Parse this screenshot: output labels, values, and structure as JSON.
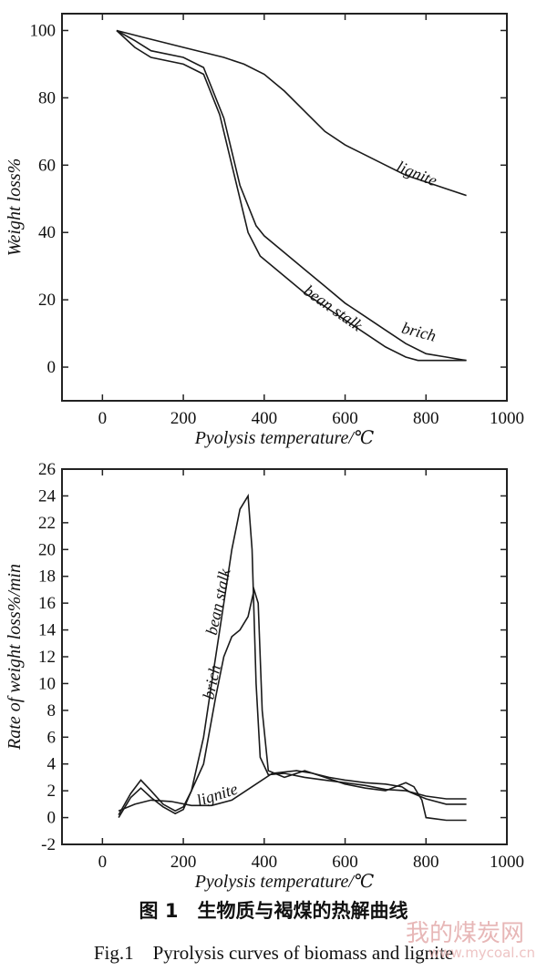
{
  "chart_data": [
    {
      "type": "line",
      "title": "",
      "xlabel": "Pyolysis temperature/℃",
      "ylabel": "Weight loss%",
      "xlim": [
        -100,
        1000
      ],
      "ylim": [
        -10,
        105
      ],
      "xticks": [
        0,
        200,
        400,
        600,
        800,
        1000
      ],
      "yticks": [
        0,
        20,
        40,
        60,
        80,
        100
      ],
      "grid": false,
      "series": [
        {
          "name": "lignite",
          "x": [
            35,
            100,
            200,
            300,
            350,
            400,
            450,
            500,
            550,
            600,
            650,
            700,
            750,
            800,
            850,
            900
          ],
          "y": [
            100,
            98,
            95,
            92,
            90,
            87,
            82,
            76,
            70,
            66,
            63,
            60,
            57,
            55,
            53,
            51
          ]
        },
        {
          "name": "brich",
          "x": [
            35,
            80,
            120,
            200,
            250,
            300,
            340,
            380,
            400,
            450,
            500,
            550,
            600,
            650,
            700,
            750,
            800,
            850,
            900
          ],
          "y": [
            100,
            97,
            94,
            92,
            89,
            74,
            54,
            42,
            39,
            34,
            29,
            24,
            19,
            15,
            11,
            7,
            4,
            3,
            2
          ]
        },
        {
          "name": "bean stalk",
          "x": [
            35,
            80,
            120,
            200,
            250,
            290,
            330,
            360,
            390,
            450,
            500,
            550,
            600,
            650,
            700,
            750,
            780,
            900
          ],
          "y": [
            100,
            95,
            92,
            90,
            87,
            75,
            55,
            40,
            33,
            27,
            22,
            18,
            14,
            10,
            6,
            3,
            2,
            2
          ]
        }
      ],
      "annotations": [
        "lignite",
        "bean stalk",
        "brich"
      ]
    },
    {
      "type": "line",
      "title": "",
      "xlabel": "Pyolysis temperature/℃",
      "ylabel": "Rate of weight loss%/min",
      "xlim": [
        -100,
        1000
      ],
      "ylim": [
        -2,
        26
      ],
      "xticks": [
        0,
        200,
        400,
        600,
        800,
        1000
      ],
      "yticks": [
        -2,
        0,
        2,
        4,
        6,
        8,
        10,
        12,
        14,
        16,
        18,
        20,
        22,
        24,
        26
      ],
      "grid": false,
      "series": [
        {
          "name": "bean stalk",
          "x": [
            40,
            70,
            95,
            120,
            150,
            180,
            200,
            220,
            250,
            270,
            300,
            320,
            340,
            360,
            370,
            380,
            390,
            410,
            450,
            500,
            550,
            600,
            650,
            700,
            750,
            800,
            850,
            900
          ],
          "y": [
            0,
            1.5,
            2.2,
            1.5,
            0.8,
            0.3,
            0.6,
            2.0,
            6.0,
            10.0,
            16.0,
            20.0,
            23.0,
            24.0,
            20.0,
            10.0,
            4.5,
            3.2,
            3.3,
            3.0,
            2.8,
            2.6,
            2.4,
            2.1,
            2.0,
            1.6,
            1.4,
            1.4
          ]
        },
        {
          "name": "brich",
          "x": [
            40,
            70,
            95,
            120,
            150,
            180,
            200,
            220,
            250,
            280,
            300,
            320,
            340,
            360,
            375,
            385,
            395,
            410,
            450,
            500,
            550,
            600,
            650,
            700,
            750,
            770,
            790,
            800,
            850,
            900
          ],
          "y": [
            0.2,
            1.8,
            2.8,
            2.0,
            1.0,
            0.5,
            0.8,
            2.0,
            4.0,
            9.0,
            12.0,
            13.5,
            14.0,
            15.0,
            17.0,
            16.0,
            8.0,
            3.5,
            3.0,
            3.5,
            3.0,
            2.5,
            2.2,
            2.0,
            2.6,
            2.3,
            1.3,
            0.0,
            -0.2,
            -0.2
          ]
        },
        {
          "name": "lignite",
          "x": [
            40,
            80,
            120,
            170,
            220,
            270,
            320,
            370,
            420,
            480,
            520,
            560,
            600,
            650,
            700,
            740,
            760,
            800,
            850,
            900
          ],
          "y": [
            0.5,
            1.0,
            1.3,
            1.2,
            0.9,
            0.9,
            1.3,
            2.3,
            3.3,
            3.5,
            3.3,
            3.0,
            2.8,
            2.6,
            2.5,
            2.3,
            1.9,
            1.4,
            1.0,
            1.0
          ]
        }
      ],
      "annotations": [
        "bean stalk",
        "brich",
        "lignite"
      ]
    }
  ],
  "captions": {
    "chinese": "图 1　生物质与褐煤的热解曲线",
    "english": "Fig.1　Pyrolysis curves of biomass and lignite"
  },
  "watermark": {
    "text": "我的煤炭网",
    "url": "www.mycoal.cn"
  }
}
